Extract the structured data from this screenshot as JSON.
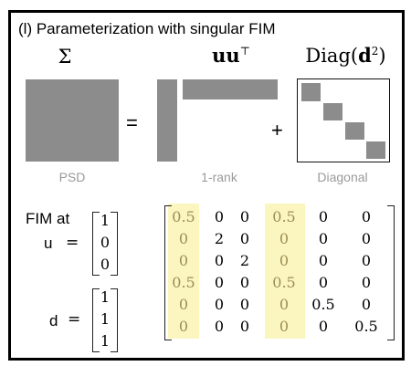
{
  "title": "(l) Parameterization with singular FIM",
  "header": {
    "sigma": "Σ",
    "uu": "uu",
    "uu_sup": "⊤",
    "diag": "Diag(",
    "diag_bold": "d",
    "diag_sup": "2",
    "diag_close": ")"
  },
  "equation": {
    "equals": "=",
    "plus": "+"
  },
  "captions": {
    "psd": "PSD",
    "rank": "1-rank",
    "diagonal": "Diagonal"
  },
  "fim": {
    "label": "FIM at",
    "u_label": "u",
    "d_label": "d",
    "eq": "=",
    "u": [
      "1",
      "0",
      "0"
    ],
    "d": [
      "1",
      "1",
      "1"
    ],
    "matrix": [
      [
        "0.5",
        "0",
        "0",
        "0.5",
        "0",
        "0"
      ],
      [
        "0",
        "2",
        "0",
        "0",
        "0",
        "0"
      ],
      [
        "0",
        "0",
        "2",
        "0",
        "0",
        "0"
      ],
      [
        "0.5",
        "0",
        "0",
        "0.5",
        "0",
        "0"
      ],
      [
        "0",
        "0",
        "0",
        "0",
        "0.5",
        "0"
      ],
      [
        "0",
        "0",
        "0",
        "0",
        "0",
        "0.5"
      ]
    ],
    "highlight_color": "#fbf6c0"
  }
}
